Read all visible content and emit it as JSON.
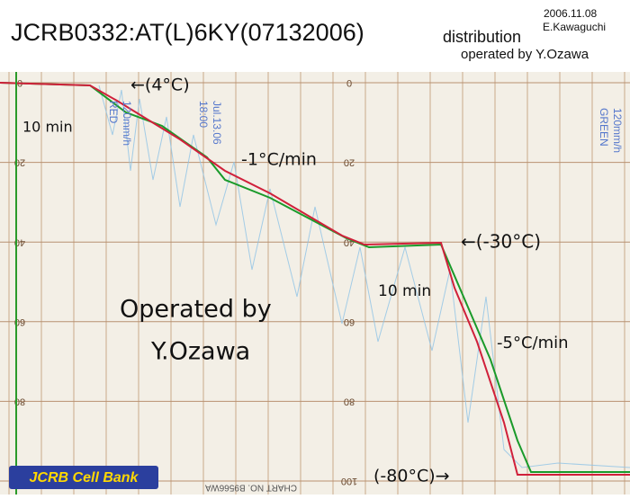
{
  "header": {
    "title": "JCRB0332:AT(L)6KY(07132006)",
    "subtitle": "distribution",
    "date": "2006.11.08",
    "author": "E.Kawaguchi",
    "operator": "operated by Y.Ozawa"
  },
  "paper": {
    "scale": [
      0,
      20,
      40,
      60,
      80,
      100
    ],
    "print_left": [
      "Jul.13.06",
      "18:00",
      "120mm/h",
      "RED"
    ],
    "print_right": [
      "120mm/h",
      "GREEN"
    ],
    "chart_no": "CHART NO. B9566WA"
  },
  "annotations": {
    "start_temp": "←(4°C)",
    "hold_1": "10 min",
    "rate_1": "-1°C/min",
    "mid_temp": "←(-30°C)",
    "hold_2": "10 min",
    "rate_2": "-5°C/min",
    "end_temp": "(-80°C)→",
    "signature_1": "Operated by",
    "signature_2": "Y.Ozawa"
  },
  "logo": "JCRB Cell Bank"
}
